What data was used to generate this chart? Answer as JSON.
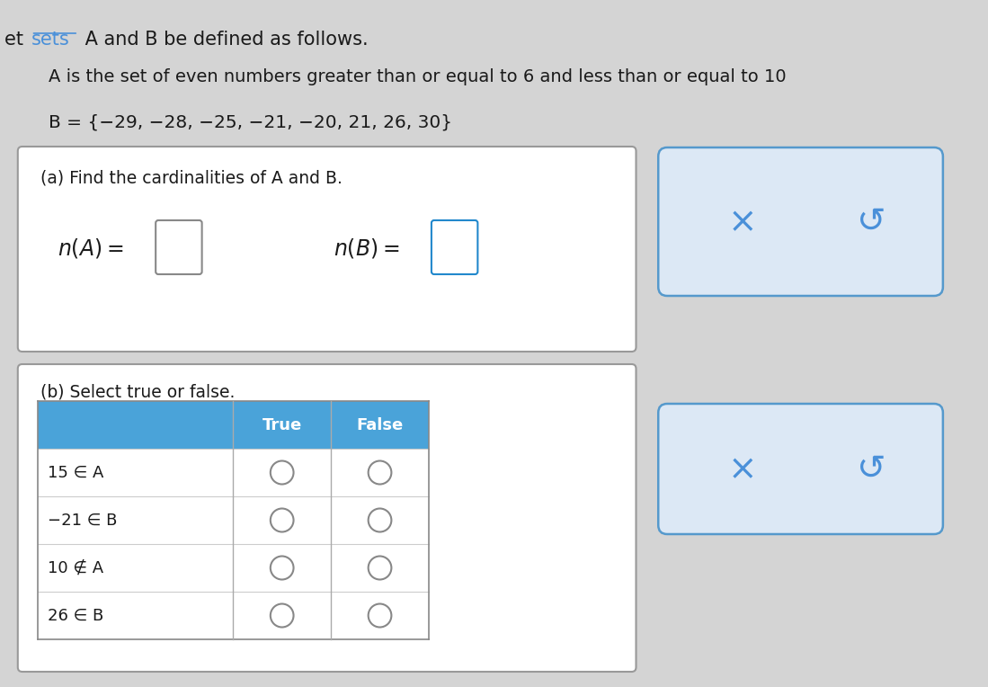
{
  "bg_color": "#d4d4d4",
  "title_color": "#1a1a1a",
  "sets_link_color": "#4a90d9",
  "line1": "A is the set of even numbers greater than or equal to 6 and less than or equal to 10",
  "line2": "B = {−29, −28, −25, −21, −20, 21, 26, 30}",
  "section_a_label": "(a) Find the cardinalities of A and B.",
  "section_b_label": "(b) Select true or false.",
  "table_rows": [
    "15 ∈ A",
    "−21 ∈ B",
    "10 ∉ A",
    "26 ∈ B"
  ],
  "header_bg": "#4aa3d9",
  "panel_border": "#999999",
  "button_bg": "#dce8f5",
  "button_border": "#5599cc",
  "x_color": "#4a90d9",
  "s_color": "#4a90d9"
}
